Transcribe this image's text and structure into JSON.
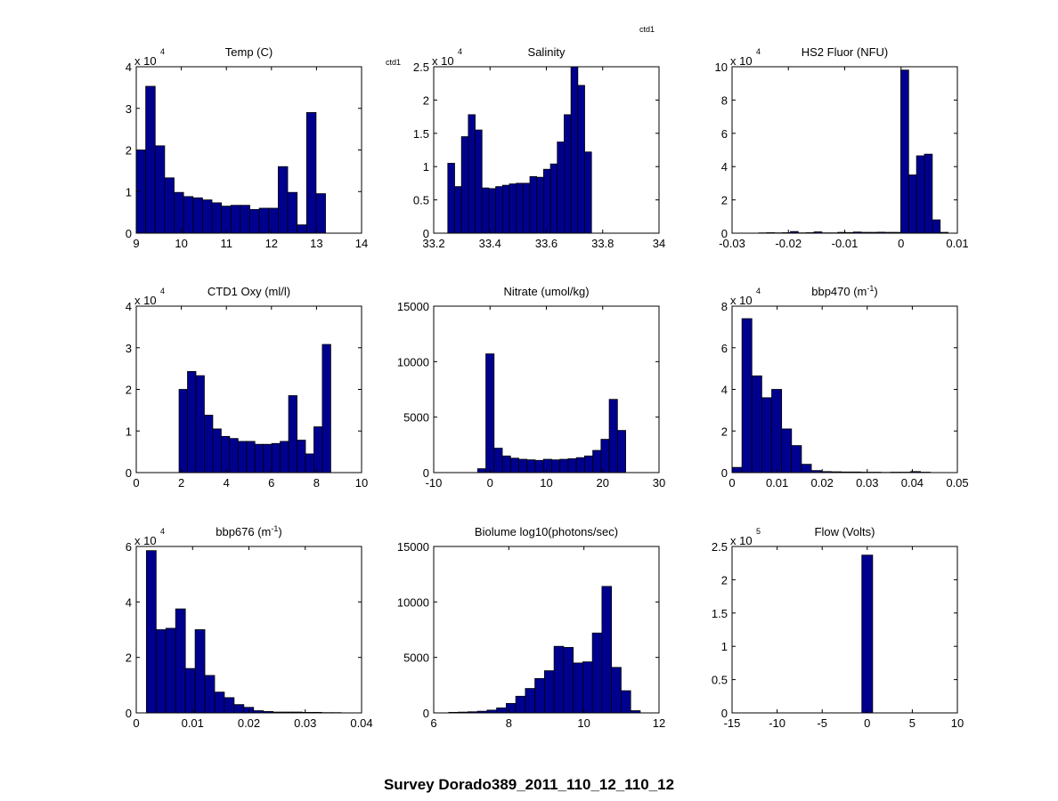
{
  "figure": {
    "suptitle": "Survey Dorado389_2011_110_12_110_12",
    "annotations": [
      "ctd1",
      "ctd1"
    ],
    "bar_color": "#00008f",
    "edge_color": "#000000"
  },
  "chart_data": [
    {
      "type": "bar",
      "title": "Temp (C)",
      "title_html": "Temp (C)",
      "multiplier": "4",
      "xlim": [
        9,
        14
      ],
      "ylim": [
        0,
        4
      ],
      "xticks": [
        9,
        10,
        11,
        12,
        13,
        14
      ],
      "xticklabels": [
        "9",
        "10",
        "11",
        "12",
        "13",
        "14"
      ],
      "yticks": [
        0,
        1,
        2,
        3,
        4
      ],
      "yticklabels": [
        "0",
        "1",
        "2",
        "3",
        "4"
      ],
      "bin_start": 9.0,
      "bin_width": 0.21,
      "values": [
        2.0,
        3.53,
        2.1,
        1.33,
        0.98,
        0.88,
        0.85,
        0.8,
        0.73,
        0.65,
        0.67,
        0.67,
        0.57,
        0.6,
        0.6,
        1.6,
        0.98,
        0.2,
        2.9,
        0.95
      ]
    },
    {
      "type": "bar",
      "title": "Salinity",
      "title_html": "Salinity",
      "multiplier": "4",
      "xlim": [
        33.2,
        34
      ],
      "ylim": [
        0,
        2.5
      ],
      "xticks": [
        33.2,
        33.4,
        33.6,
        33.8,
        34
      ],
      "xticklabels": [
        "33.2",
        "33.4",
        "33.6",
        "33.8",
        "34"
      ],
      "yticks": [
        0,
        0.5,
        1,
        1.5,
        2,
        2.5
      ],
      "yticklabels": [
        "0",
        "0.5",
        "1",
        "1.5",
        "2",
        "2.5"
      ],
      "bin_start": 33.25,
      "bin_width": 0.0243,
      "values": [
        1.05,
        0.7,
        1.45,
        1.78,
        1.55,
        0.68,
        0.67,
        0.7,
        0.72,
        0.74,
        0.75,
        0.75,
        0.85,
        0.84,
        0.96,
        1.04,
        1.37,
        1.78,
        2.5,
        2.22,
        1.22
      ]
    },
    {
      "type": "bar",
      "title": "HS2 Fluor (NFU)",
      "title_html": "HS2 Fluor (NFU)",
      "multiplier": "4",
      "xlim": [
        -0.03,
        0.01
      ],
      "ylim": [
        0,
        10
      ],
      "xticks": [
        -0.03,
        -0.02,
        -0.01,
        0,
        0.01
      ],
      "xticklabels": [
        "-0.03",
        "-0.02",
        "-0.01",
        "0",
        "0.01"
      ],
      "yticks": [
        0,
        2,
        4,
        6,
        8,
        10
      ],
      "yticklabels": [
        "0",
        "2",
        "4",
        "6",
        "8",
        "10"
      ],
      "bin_start": -0.02525,
      "bin_width": 0.0014,
      "values": [
        0.02,
        0.03,
        0.02,
        0.03,
        0.1,
        0.02,
        0.03,
        0.08,
        0.02,
        0.02,
        0.05,
        0.04,
        0.07,
        0.05,
        0.05,
        0.06,
        0.05,
        0.05,
        9.8,
        3.5,
        4.65,
        4.75,
        0.8,
        0.05
      ]
    },
    {
      "type": "bar",
      "title": "CTD1 Oxy (ml/l)",
      "title_html": "CTD1 Oxy (ml/l)",
      "multiplier": "4",
      "xlim": [
        0,
        10
      ],
      "ylim": [
        0,
        4
      ],
      "xticks": [
        0,
        2,
        4,
        6,
        8,
        10
      ],
      "xticklabels": [
        "0",
        "2",
        "4",
        "6",
        "8",
        "10"
      ],
      "yticks": [
        0,
        1,
        2,
        3,
        4
      ],
      "yticklabels": [
        "0",
        "1",
        "2",
        "3",
        "4"
      ],
      "bin_start": 1.9,
      "bin_width": 0.374,
      "values": [
        2.0,
        2.43,
        2.33,
        1.38,
        1.05,
        0.87,
        0.82,
        0.75,
        0.75,
        0.68,
        0.68,
        0.7,
        0.75,
        1.85,
        0.78,
        0.45,
        1.1,
        3.08
      ]
    },
    {
      "type": "bar",
      "title": "Nitrate (umol/kg)",
      "title_html": "Nitrate (umol/kg)",
      "multiplier": "",
      "xlim": [
        -10,
        30
      ],
      "ylim": [
        0,
        15000
      ],
      "xticks": [
        -10,
        0,
        10,
        20,
        30
      ],
      "xticklabels": [
        "-10",
        "0",
        "10",
        "20",
        "30"
      ],
      "yticks": [
        0,
        5000,
        10000,
        15000
      ],
      "yticklabels": [
        "0",
        "5000",
        "10000",
        "15000"
      ],
      "bin_start": -2.2,
      "bin_width": 1.46,
      "values": [
        350,
        10700,
        2200,
        1500,
        1300,
        1200,
        1150,
        1100,
        1200,
        1150,
        1200,
        1250,
        1350,
        1500,
        2000,
        3000,
        6600,
        3800
      ]
    },
    {
      "type": "bar",
      "title": "bbp470 (m-1)",
      "title_html": "bbp470 (m<tspan baseline-shift=\"super\" font-size=\"9\">-1</tspan>)",
      "multiplier": "4",
      "xlim": [
        0,
        0.05
      ],
      "ylim": [
        0,
        8
      ],
      "xticks": [
        0,
        0.01,
        0.02,
        0.03,
        0.04,
        0.05
      ],
      "xticklabels": [
        "0",
        "0.01",
        "0.02",
        "0.03",
        "0.04",
        "0.05"
      ],
      "yticks": [
        0,
        2,
        4,
        6,
        8
      ],
      "yticklabels": [
        "0",
        "2",
        "4",
        "6",
        "8"
      ],
      "bin_start": 0.0,
      "bin_width": 0.0022,
      "values": [
        0.25,
        7.4,
        4.65,
        3.6,
        4.0,
        2.1,
        1.3,
        0.4,
        0.1,
        0.05,
        0.04,
        0.03,
        0.03,
        0.02,
        0.02,
        0.01,
        0.02,
        0.02,
        0.05,
        0.02
      ]
    },
    {
      "type": "bar",
      "title": "bbp676 (m-1)",
      "title_html": "bbp676 (m<tspan baseline-shift=\"super\" font-size=\"9\">-1</tspan>)",
      "multiplier": "4",
      "xlim": [
        0,
        0.04
      ],
      "ylim": [
        0,
        6
      ],
      "xticks": [
        0,
        0.01,
        0.02,
        0.03,
        0.04
      ],
      "xticklabels": [
        "0",
        "0.01",
        "0.02",
        "0.03",
        "0.04"
      ],
      "yticks": [
        0,
        2,
        4,
        6
      ],
      "yticklabels": [
        "0",
        "2",
        "4",
        "6"
      ],
      "bin_start": 0.0018,
      "bin_width": 0.00173,
      "values": [
        5.85,
        3.0,
        3.05,
        3.75,
        1.6,
        3.0,
        1.35,
        0.75,
        0.55,
        0.3,
        0.2,
        0.08,
        0.05,
        0.03,
        0.03,
        0.03,
        0.02,
        0.02,
        0.01,
        0.01
      ]
    },
    {
      "type": "bar",
      "title": "Biolume log10(photons/sec)",
      "title_html": "Biolume log10(photons/sec)",
      "multiplier": "",
      "xlim": [
        6,
        12
      ],
      "ylim": [
        0,
        15000
      ],
      "xticks": [
        6,
        8,
        10,
        12
      ],
      "xticklabels": [
        "6",
        "8",
        "10",
        "12"
      ],
      "yticks": [
        0,
        5000,
        10000,
        15000
      ],
      "yticklabels": [
        "0",
        "5000",
        "10000",
        "15000"
      ],
      "bin_start": 6.4,
      "bin_width": 0.255,
      "values": [
        50,
        70,
        100,
        150,
        250,
        450,
        850,
        1500,
        2200,
        3100,
        3800,
        6000,
        5900,
        4500,
        4600,
        7200,
        11400,
        4100,
        2000,
        200
      ]
    },
    {
      "type": "bar",
      "title": "Flow (Volts)",
      "title_html": "Flow (Volts)",
      "multiplier": "5",
      "xlim": [
        -15,
        10
      ],
      "ylim": [
        0,
        2.5
      ],
      "xticks": [
        -15,
        -10,
        -5,
        0,
        5,
        10
      ],
      "xticklabels": [
        "-15",
        "-10",
        "-5",
        "0",
        "5",
        "10"
      ],
      "yticks": [
        0,
        0.5,
        1,
        1.5,
        2,
        2.5
      ],
      "yticklabels": [
        "0",
        "0.5",
        "1",
        "1.5",
        "2",
        "2.5"
      ],
      "bin_start": -0.6,
      "bin_width": 1.2,
      "values": [
        2.37
      ]
    }
  ]
}
